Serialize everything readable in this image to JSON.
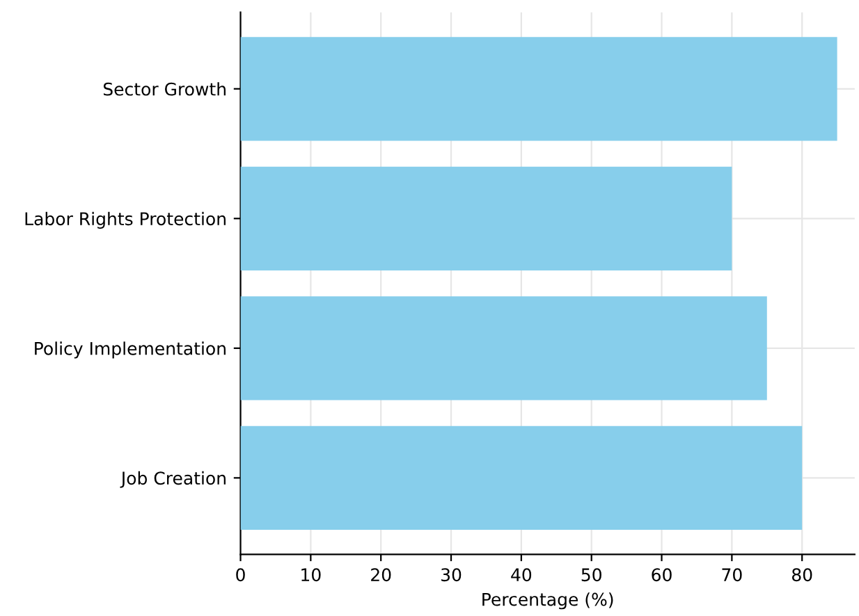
{
  "chart_data": {
    "type": "bar",
    "orientation": "horizontal",
    "xlabel": "Percentage (%)",
    "categories": [
      "Sector Growth",
      "Labor Rights Protection",
      "Policy Implementation",
      "Job Creation"
    ],
    "values": [
      85,
      70,
      75,
      80
    ],
    "color": "#87ceeb",
    "xlim": [
      0,
      87.5
    ],
    "xticks": [
      0,
      10,
      20,
      30,
      40,
      50,
      60,
      70,
      80
    ],
    "grid": true
  }
}
